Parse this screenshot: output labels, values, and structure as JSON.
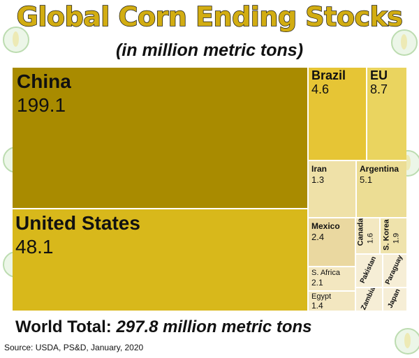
{
  "title": "Global Corn Ending Stocks",
  "subtitle": "(in million metric tons)",
  "total": {
    "label": "World Total:",
    "value": "297.8 million metric tons"
  },
  "source": "Source: USDA, PS&D, January, 2020",
  "chart_data": {
    "type": "treemap",
    "title": "Global Corn Ending Stocks",
    "subtitle": "(in million metric tons)",
    "total": 297.8,
    "items": [
      {
        "name": "China",
        "value": "199.1",
        "color": "#a98b00"
      },
      {
        "name": "United States",
        "value": "48.1",
        "color": "#d8b81b"
      },
      {
        "name": "Brazil",
        "value": "4.6",
        "color": "#e6c535"
      },
      {
        "name": "EU",
        "value": "8.7",
        "color": "#ead45f"
      },
      {
        "name": "Iran",
        "value": "1.3",
        "color": "#efe1a8"
      },
      {
        "name": "Argentina",
        "value": "5.1",
        "color": "#ecdd94"
      },
      {
        "name": "Mexico",
        "value": "2.4",
        "color": "#ead8a0"
      },
      {
        "name": "Canada",
        "value": "1.6",
        "color": "#f3e8c1"
      },
      {
        "name": "S. Korea",
        "value": "1.9",
        "color": "#efe3ac"
      },
      {
        "name": "S. Africa",
        "value": "2.1",
        "color": "#f3e7c0"
      },
      {
        "name": "Egypt",
        "value": "1.4",
        "color": "#f3e7c0"
      },
      {
        "name": "Pakistan",
        "value": "",
        "color": "#f6eed6"
      },
      {
        "name": "Paraguay",
        "value": "",
        "color": "#f6eed6"
      },
      {
        "name": "Zambia",
        "value": "",
        "color": "#f6eed6"
      },
      {
        "name": "Japan",
        "value": "",
        "color": "#f6eed6"
      }
    ]
  }
}
